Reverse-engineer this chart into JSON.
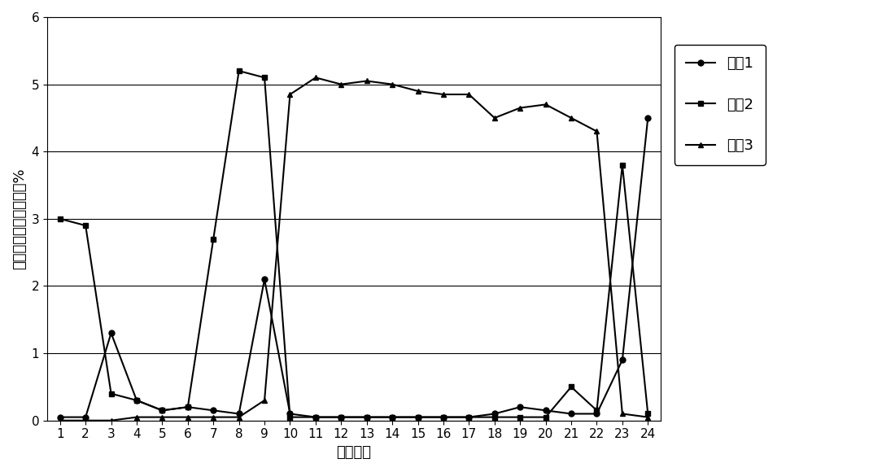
{
  "hours": [
    1,
    2,
    3,
    4,
    5,
    6,
    7,
    8,
    9,
    10,
    11,
    12,
    13,
    14,
    15,
    16,
    17,
    18,
    19,
    20,
    21,
    22,
    23,
    24
  ],
  "cluster1": [
    0.05,
    0.05,
    1.3,
    0.3,
    0.15,
    0.2,
    0.15,
    0.1,
    2.1,
    0.1,
    0.05,
    0.05,
    0.05,
    0.05,
    0.05,
    0.05,
    0.05,
    0.1,
    0.2,
    0.15,
    0.1,
    0.1,
    0.9,
    4.5
  ],
  "cluster2": [
    3.0,
    2.9,
    0.4,
    0.3,
    0.15,
    0.2,
    2.7,
    5.2,
    5.1,
    0.05,
    0.05,
    0.05,
    0.05,
    0.05,
    0.05,
    0.05,
    0.05,
    0.05,
    0.05,
    0.05,
    0.5,
    0.15,
    3.8,
    0.1
  ],
  "cluster3": [
    0.0,
    0.0,
    0.0,
    0.05,
    0.05,
    0.05,
    0.05,
    0.05,
    0.3,
    4.85,
    5.1,
    5.0,
    5.05,
    5.0,
    4.9,
    4.85,
    4.85,
    4.5,
    4.65,
    4.7,
    4.5,
    4.3,
    0.1,
    0.05
  ],
  "xlabel": "单位小时",
  "ylabel": "整个样本中的出现概率%",
  "legend_labels": [
    "聚瘷1",
    "聚瘷2",
    "聚瘷3"
  ],
  "ylim": [
    0,
    6
  ],
  "yticks": [
    0,
    1,
    2,
    3,
    4,
    5,
    6
  ],
  "line_color": "#000000",
  "marker_cluster1": "o",
  "marker_cluster2": "s",
  "marker_cluster3": "^",
  "background_color": "#ffffff",
  "axis_fontsize": 13,
  "legend_fontsize": 13,
  "tick_fontsize": 11
}
